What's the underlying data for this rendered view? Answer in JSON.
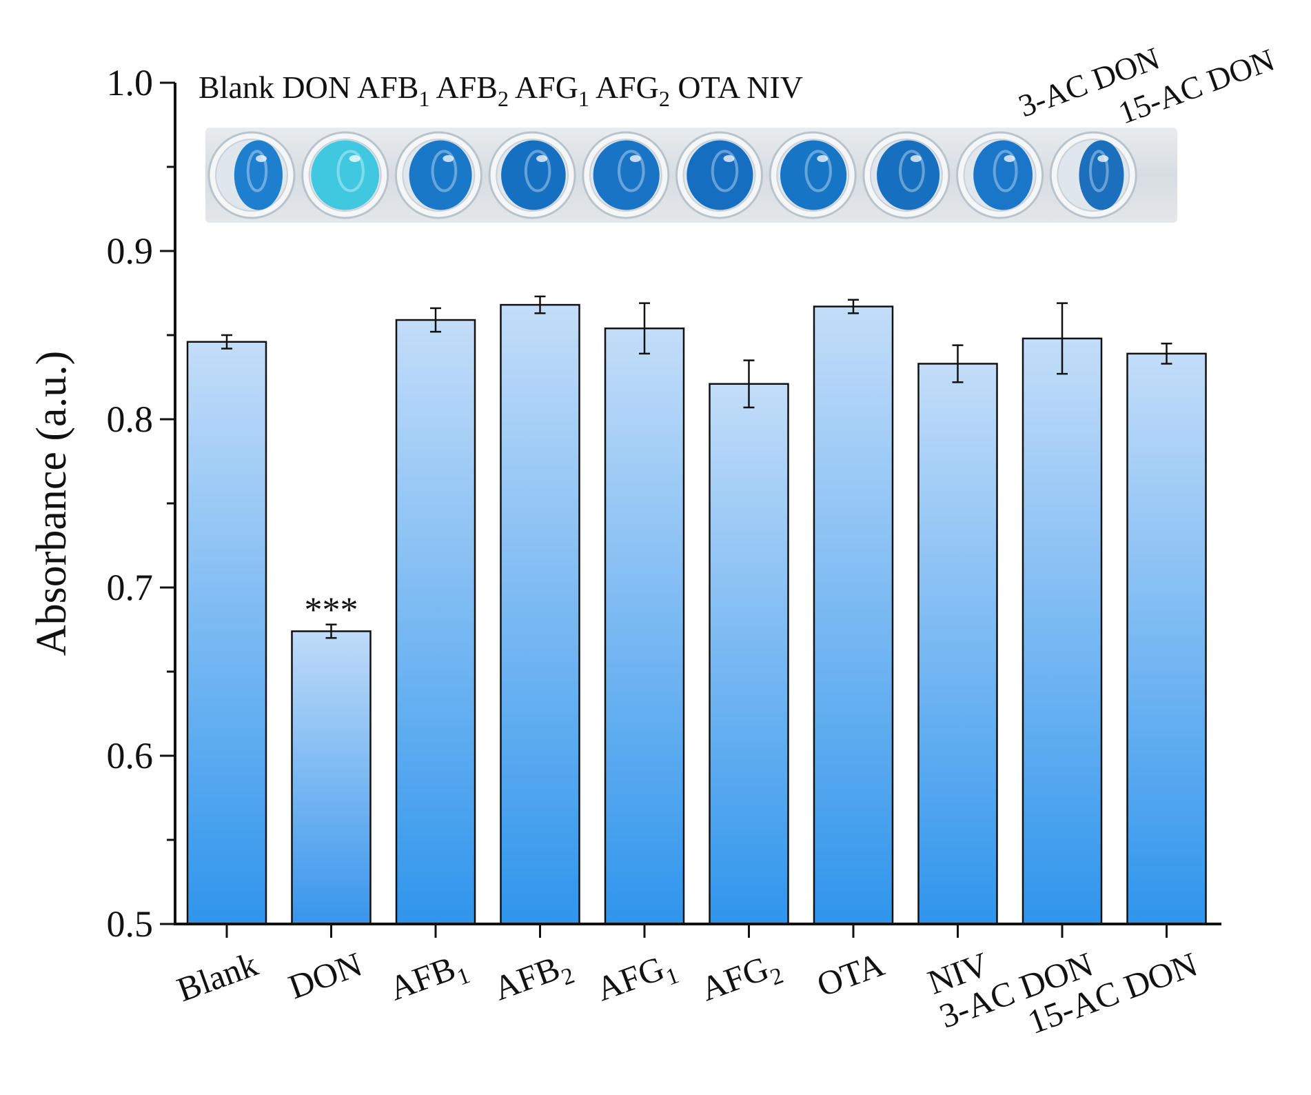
{
  "chart_data": {
    "type": "bar",
    "ylabel": "Absorbance (a.u.)",
    "xlabel": "",
    "ylim": [
      0.5,
      1.0
    ],
    "yticks": [
      "0.5",
      "0.6",
      "0.7",
      "0.8",
      "0.9",
      "1.0"
    ],
    "grid": false,
    "categories": [
      {
        "base": "Blank",
        "sub": ""
      },
      {
        "base": "DON",
        "sub": ""
      },
      {
        "base": "AFB",
        "sub": "1"
      },
      {
        "base": "AFB",
        "sub": "2"
      },
      {
        "base": "AFG",
        "sub": "1"
      },
      {
        "base": "AFG",
        "sub": "2"
      },
      {
        "base": "OTA",
        "sub": ""
      },
      {
        "base": "NIV",
        "sub": ""
      },
      {
        "base": "3-AC DON",
        "sub": ""
      },
      {
        "base": "15-AC DON",
        "sub": ""
      }
    ],
    "values": [
      0.846,
      0.674,
      0.859,
      0.868,
      0.854,
      0.821,
      0.867,
      0.833,
      0.848,
      0.839
    ],
    "errors": [
      0.004,
      0.004,
      0.007,
      0.005,
      0.015,
      0.014,
      0.004,
      0.011,
      0.021,
      0.006
    ],
    "annotations": [
      {
        "category_index": 1,
        "text": "***"
      }
    ],
    "bar_color_top": "#c3ddf9",
    "bar_color_bottom": "#2f95ec",
    "bar_color_don_top": "#bfdbf8",
    "bar_color_don_bottom": "#3896ec"
  },
  "photo_inset": {
    "labels": [
      "Blank DON AFB",
      "1",
      " AFB",
      "2",
      " AFG",
      "1",
      " AFG",
      "2",
      " OTA NIV"
    ],
    "rotated_labels": [
      "3-AC DON",
      "15-AC DON"
    ],
    "wells": [
      {
        "color": "#1f7fcf",
        "fill": 0.45
      },
      {
        "color": "#40c8e0",
        "fill": 1.0
      },
      {
        "color": "#1a78c8",
        "fill": 0.85
      },
      {
        "color": "#1670c2",
        "fill": 0.9
      },
      {
        "color": "#1a74c6",
        "fill": 0.95
      },
      {
        "color": "#156ec0",
        "fill": 0.95
      },
      {
        "color": "#1775c6",
        "fill": 0.95
      },
      {
        "color": "#166fbf",
        "fill": 0.85
      },
      {
        "color": "#1a76c8",
        "fill": 0.75
      },
      {
        "color": "#1b6fbd",
        "fill": 0.35
      }
    ]
  }
}
